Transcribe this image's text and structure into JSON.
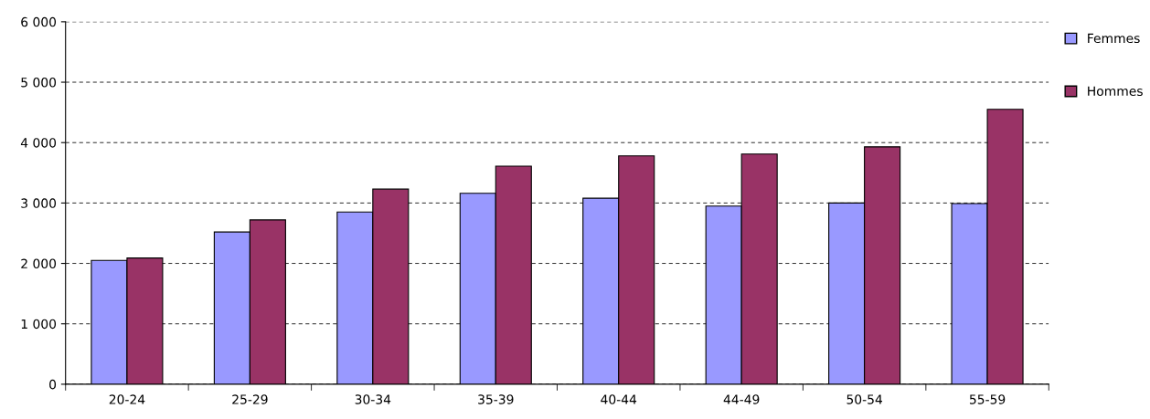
{
  "chart_data": {
    "type": "bar",
    "categories": [
      "20-24",
      "25-29",
      "30-34",
      "35-39",
      "40-44",
      "44-49",
      "50-54",
      "55-59"
    ],
    "series": [
      {
        "name": "Femmes",
        "color": "#9999ff",
        "values": [
          2050,
          2520,
          2850,
          3160,
          3080,
          2950,
          3000,
          2990
        ]
      },
      {
        "name": "Hommes",
        "color": "#993366",
        "values": [
          2090,
          2720,
          3230,
          3610,
          3780,
          3810,
          3930,
          4550
        ]
      }
    ],
    "ylim": [
      0,
      6000
    ],
    "yticks": [
      {
        "value": 0,
        "label": "0"
      },
      {
        "value": 1000,
        "label": "1 000"
      },
      {
        "value": 2000,
        "label": "2 000"
      },
      {
        "value": 3000,
        "label": "3 000"
      },
      {
        "value": 4000,
        "label": "4 000"
      },
      {
        "value": 5000,
        "label": "5 000"
      },
      {
        "value": 6000,
        "label": "6 000"
      }
    ],
    "grid": "y",
    "legend": "right"
  }
}
